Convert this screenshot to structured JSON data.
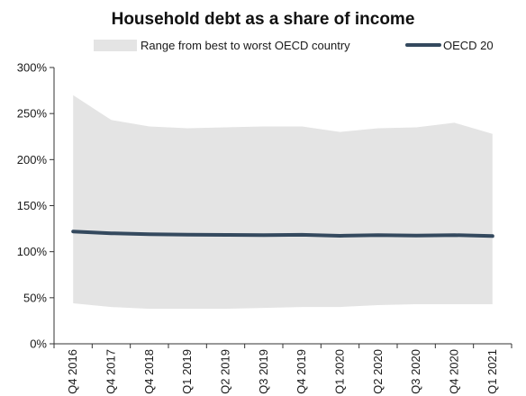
{
  "chart_data": {
    "type": "area",
    "title": "Household debt as a share of income",
    "xlabel": "",
    "ylabel": "",
    "categories": [
      "Q4 2016",
      "Q4 2017",
      "Q4 2018",
      "Q1 2019",
      "Q2 2019",
      "Q3 2019",
      "Q4 2019",
      "Q1 2020",
      "Q2 2020",
      "Q3 2020",
      "Q4 2020",
      "Q1 2021"
    ],
    "ylim": [
      0,
      300
    ],
    "yticks": [
      0,
      50,
      100,
      150,
      200,
      250,
      300
    ],
    "ytick_labels": [
      "0%",
      "50%",
      "100%",
      "150%",
      "200%",
      "250%",
      "300%"
    ],
    "grid": false,
    "legend_position": "top",
    "range_band": {
      "name": "Range from best to worst OECD country",
      "color": "#e4e4e4",
      "upper": [
        270,
        243,
        236,
        234,
        235,
        236,
        236,
        230,
        234,
        235,
        240,
        228
      ],
      "lower": [
        44,
        40,
        38,
        38,
        38,
        39,
        40,
        40,
        42,
        43,
        43,
        43
      ]
    },
    "series": [
      {
        "name": "OECD 20",
        "color": "#34495e",
        "values": [
          122,
          120,
          119,
          118.5,
          118.2,
          118,
          118.3,
          117.3,
          118,
          117.5,
          118,
          117
        ]
      }
    ]
  }
}
